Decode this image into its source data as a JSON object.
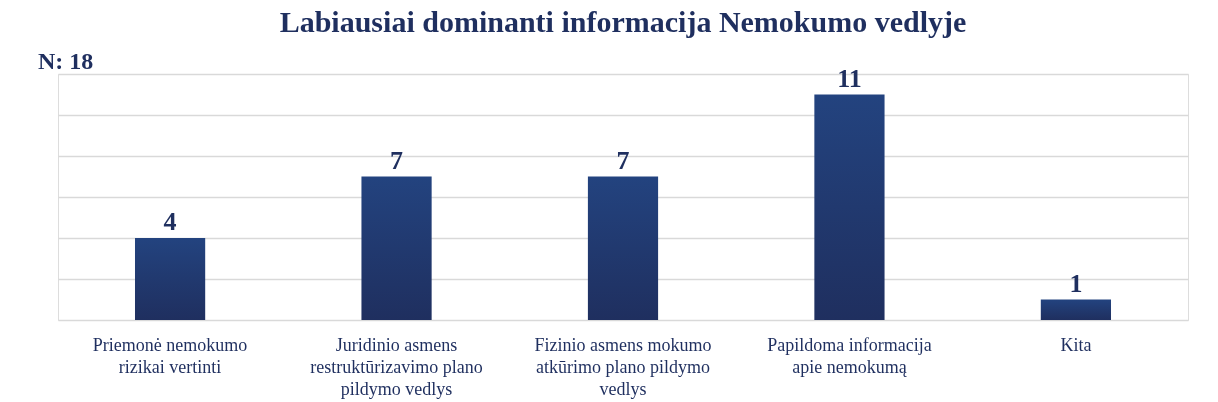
{
  "chart_data": {
    "type": "bar",
    "title": "Labiausiai dominanti informacija Nemokumo vedlyje",
    "categories": [
      "Priemonė nemokumo rizikai vertinti",
      "Juridinio asmens restruktūrizavimo plano pildymo vedlys",
      "Fizinio asmens mokumo atkūrimo plano pildymo vedlys",
      "Papildoma informacija apie nemokumą",
      "Kita"
    ],
    "values": [
      4,
      7,
      7,
      11,
      1
    ],
    "color": "#23437f",
    "ylim": [
      0,
      12
    ],
    "yticks": [
      {
        "value": 0,
        "label": null
      },
      {
        "value": 2,
        "label": null
      },
      {
        "value": 4,
        "label": null
      },
      {
        "value": 6,
        "label": null
      },
      {
        "value": 8,
        "label": null
      },
      {
        "value": 10,
        "label": null
      },
      {
        "value": 12,
        "label": null
      }
    ],
    "tick_labels": "x",
    "grid": "y",
    "data_labels": true,
    "annotations": [
      "N: 18"
    ]
  }
}
